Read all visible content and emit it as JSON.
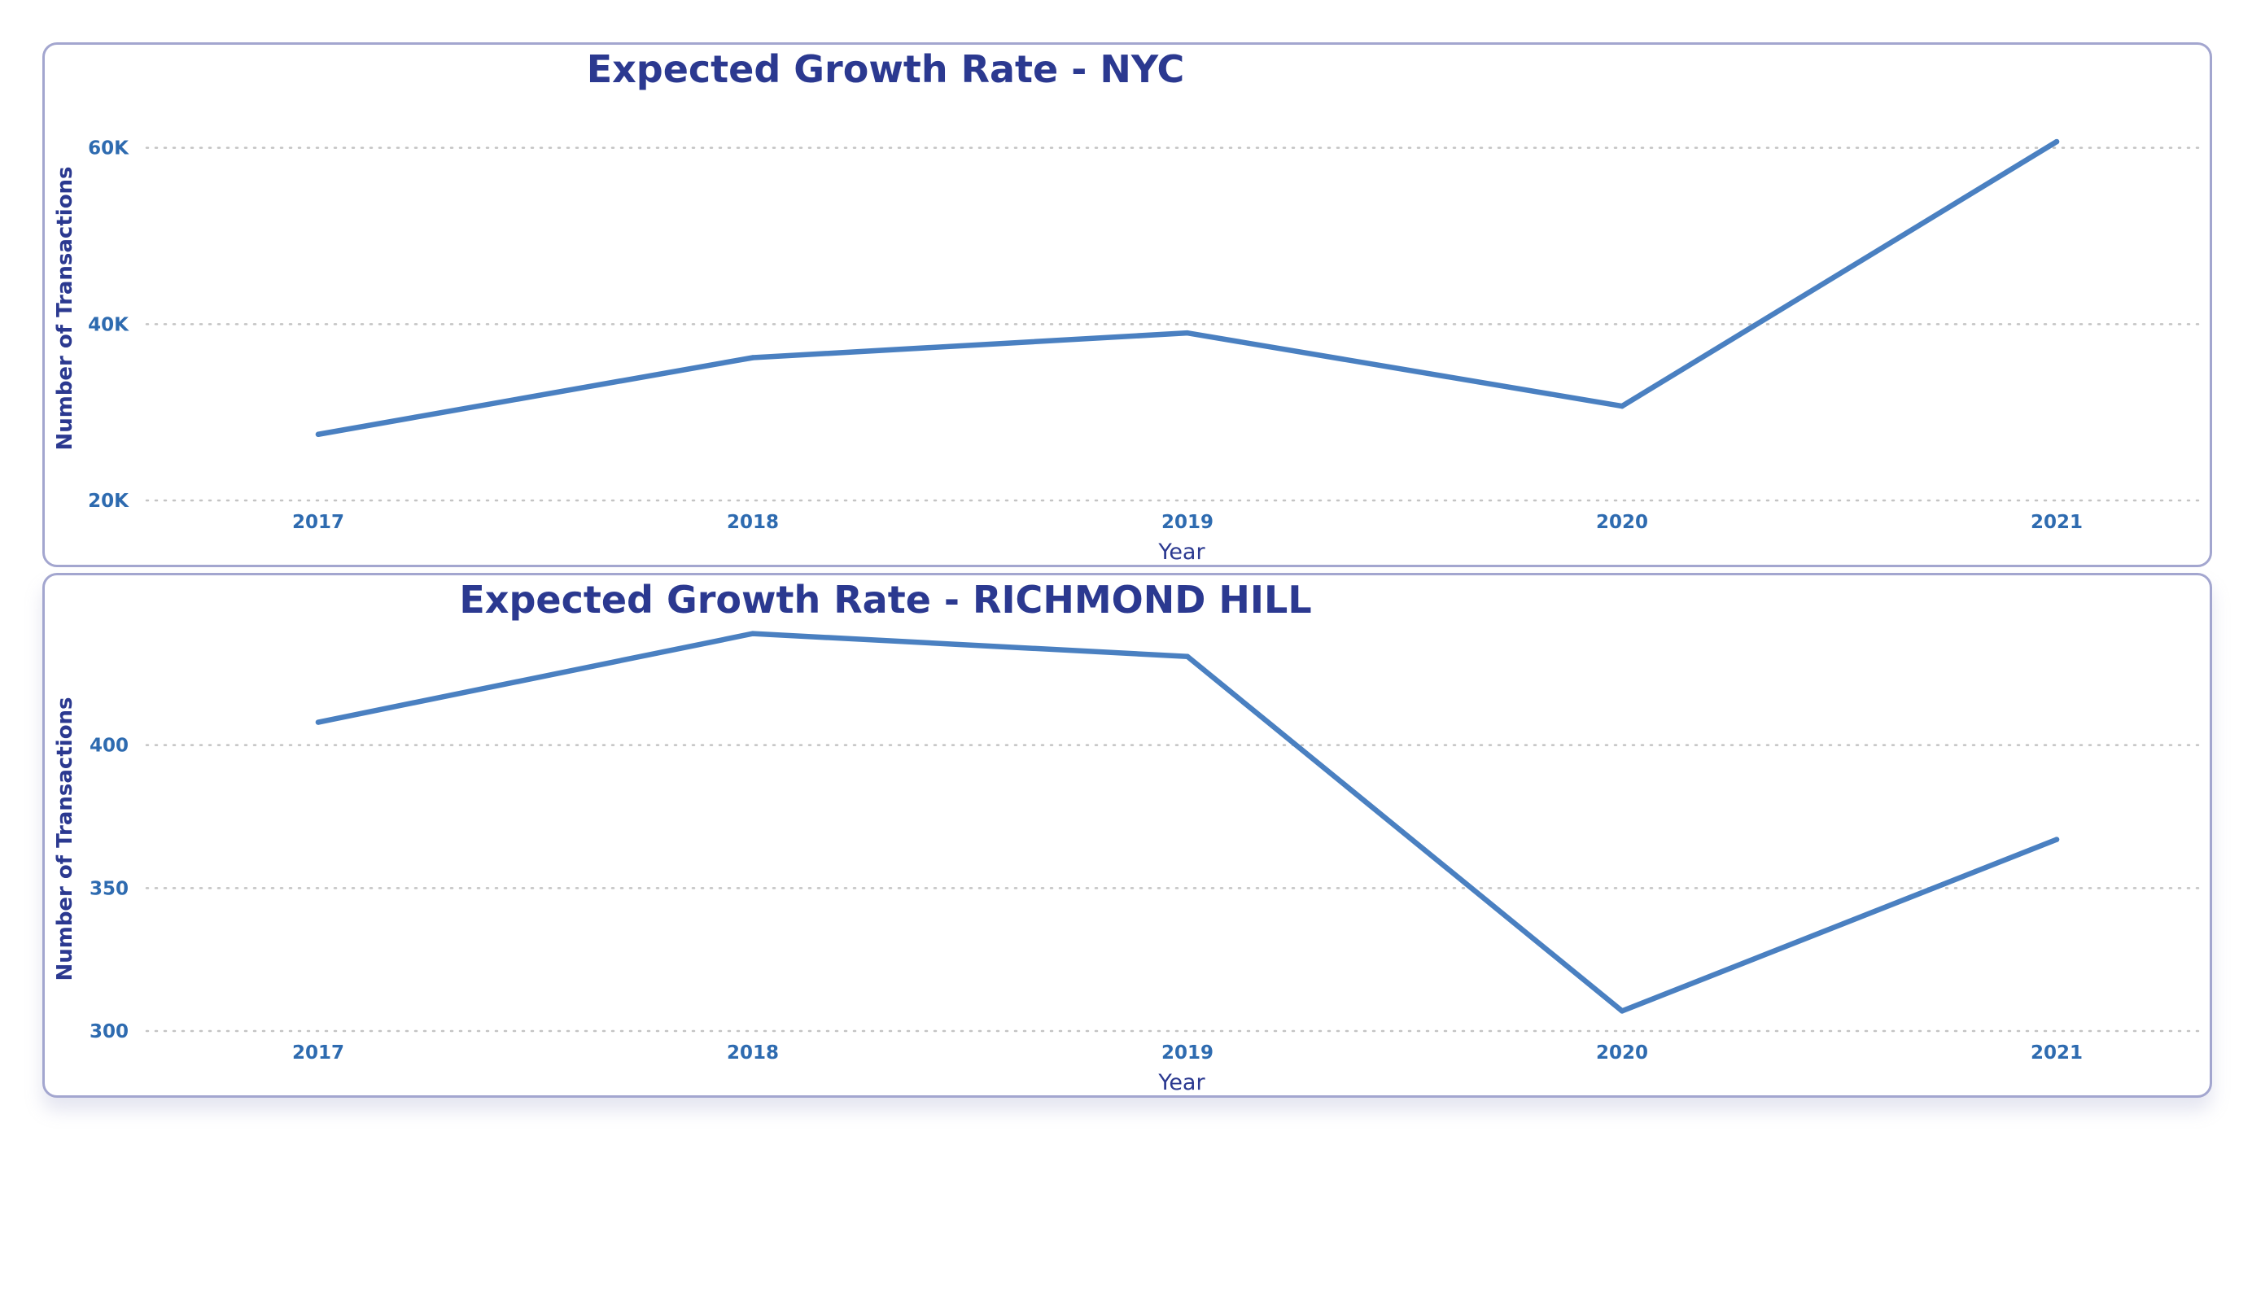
{
  "colors": {
    "line": "#4a80c1",
    "title": "#2b3990",
    "tick": "#2e6bb0",
    "grid": "#c4c4c4",
    "border": "#a3a6cf"
  },
  "chart_data": [
    {
      "type": "line",
      "title": "Expected Growth Rate - NYC",
      "xlabel": "Year",
      "ylabel": "Number of Transactions",
      "categories": [
        "2017",
        "2018",
        "2019",
        "2020",
        "2021"
      ],
      "series": [
        {
          "values": [
            27500,
            36200,
            39000,
            30700,
            60700
          ]
        }
      ],
      "yticks": [
        20000,
        40000,
        60000
      ],
      "ytick_labels": [
        "20K",
        "40K",
        "60K"
      ],
      "ylim": [
        20000,
        68000
      ],
      "grid": true,
      "legend": "none"
    },
    {
      "type": "line",
      "title": "Expected Growth Rate - RICHMOND HILL",
      "xlabel": "Year",
      "ylabel": "Number of Transactions",
      "categories": [
        "2017",
        "2018",
        "2019",
        "2020",
        "2021"
      ],
      "series": [
        {
          "values": [
            408,
            439,
            431,
            307,
            367
          ]
        }
      ],
      "yticks": [
        300,
        350,
        400
      ],
      "ytick_labels": [
        "300",
        "350",
        "400"
      ],
      "ylim": [
        300,
        448
      ],
      "grid": true,
      "legend": "none"
    }
  ]
}
